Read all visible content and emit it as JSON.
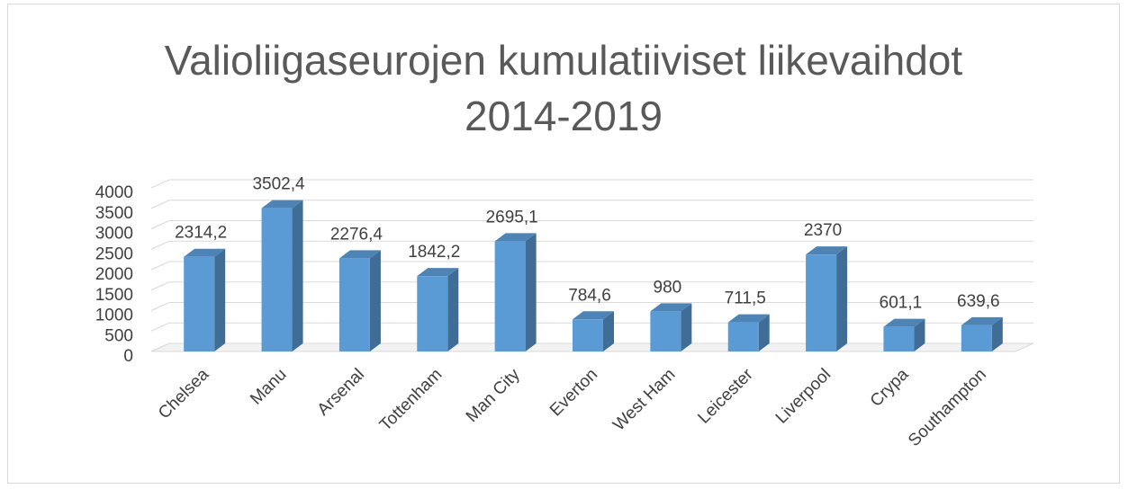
{
  "chart_data": {
    "type": "bar3d",
    "title": "Valioliigaseurojen kumulatiiviset liikevaihdot 2014-2019",
    "categories": [
      "Chelsea",
      "Manu",
      "Arsenal",
      "Tottenham",
      "Man City",
      "Everton",
      "West Ham",
      "Leicester",
      "Liverpool",
      "Crypa",
      "Southampton"
    ],
    "values": [
      2314.2,
      3502.4,
      2276.4,
      1842.2,
      2695.1,
      784.6,
      980,
      711.5,
      2370,
      601.1,
      639.6
    ],
    "value_labels": [
      "2314,2",
      "3502,4",
      "2276,4",
      "1842,2",
      "2695,1",
      "784,6",
      "980",
      "711,5",
      "2370",
      "601,1",
      "639,6"
    ],
    "color": "#5b9bd5",
    "ylim": [
      0,
      4000
    ],
    "yticks": [
      0,
      500,
      1000,
      1500,
      2000,
      2500,
      3000,
      3500,
      4000
    ],
    "grid": true
  }
}
